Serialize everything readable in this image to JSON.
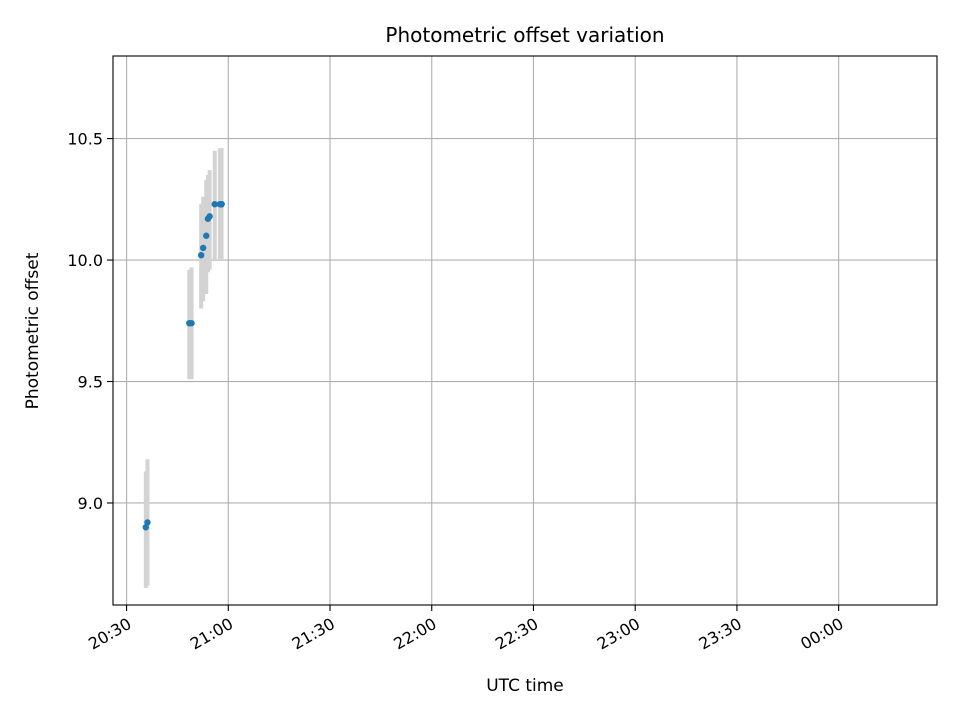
{
  "chart_data": {
    "type": "scatter",
    "title": "Photometric offset variation",
    "xlabel": "UTC time",
    "ylabel": "Photometric offset",
    "x_unit": "UTC time",
    "xlim": [
      "20:26",
      "00:29"
    ],
    "ylim": [
      8.58,
      10.84
    ],
    "grid": true,
    "x_ticks": [
      {
        "time": "20:30",
        "label": "20:30"
      },
      {
        "time": "21:00",
        "label": "21:00"
      },
      {
        "time": "21:30",
        "label": "21:30"
      },
      {
        "time": "22:00",
        "label": "22:00"
      },
      {
        "time": "22:30",
        "label": "22:30"
      },
      {
        "time": "23:00",
        "label": "23:00"
      },
      {
        "time": "23:30",
        "label": "23:30"
      },
      {
        "time": "00:00",
        "label": "00:00"
      }
    ],
    "y_ticks": [
      {
        "value": 9.0,
        "label": "9.0"
      },
      {
        "value": 9.5,
        "label": "9.5"
      },
      {
        "value": 10.0,
        "label": "10.0"
      },
      {
        "value": 10.5,
        "label": "10.5"
      }
    ],
    "colors": {
      "points": "#1f77b4",
      "errorbars": "#d3d3d3",
      "grid": "#b0b0b0"
    },
    "points": [
      {
        "x": "20:35:40",
        "y": 8.9,
        "ylo": 8.65,
        "yhi": 9.13
      },
      {
        "x": "20:36:10",
        "y": 8.92,
        "ylo": 8.66,
        "yhi": 9.18
      },
      {
        "x": "20:48:30",
        "y": 9.74,
        "ylo": 9.51,
        "yhi": 9.96
      },
      {
        "x": "20:49:10",
        "y": 9.74,
        "ylo": 9.51,
        "yhi": 9.97
      },
      {
        "x": "20:52:00",
        "y": 10.02,
        "ylo": 9.8,
        "yhi": 10.23
      },
      {
        "x": "20:52:35",
        "y": 10.05,
        "ylo": 9.83,
        "yhi": 10.26
      },
      {
        "x": "20:53:30",
        "y": 10.1,
        "ylo": 9.86,
        "yhi": 10.33
      },
      {
        "x": "20:54:00",
        "y": 10.17,
        "ylo": 9.95,
        "yhi": 10.35
      },
      {
        "x": "20:54:30",
        "y": 10.18,
        "ylo": 9.96,
        "yhi": 10.37
      },
      {
        "x": "20:56:00",
        "y": 10.23,
        "ylo": 10.0,
        "yhi": 10.45
      },
      {
        "x": "20:57:30",
        "y": 10.23,
        "ylo": 10.0,
        "yhi": 10.46
      },
      {
        "x": "20:58:00",
        "y": 10.23,
        "ylo": 10.01,
        "yhi": 10.46
      },
      {
        "x": "20:58:00",
        "y": 10.23,
        "ylo": 10.0,
        "yhi": 10.45
      },
      {
        "x": "20:58:00",
        "y": 10.23,
        "ylo": 10.0,
        "yhi": 10.46
      },
      {
        "x": "20:58:00",
        "y": 10.23,
        "ylo": 10.0,
        "yhi": 10.45
      },
      {
        "x": "20:58:00",
        "y": 10.23,
        "ylo": 10.0,
        "yhi": 10.45
      },
      {
        "x": "20:58:00",
        "y": 10.23,
        "ylo": 10.0,
        "yhi": 10.45
      }
    ]
  }
}
